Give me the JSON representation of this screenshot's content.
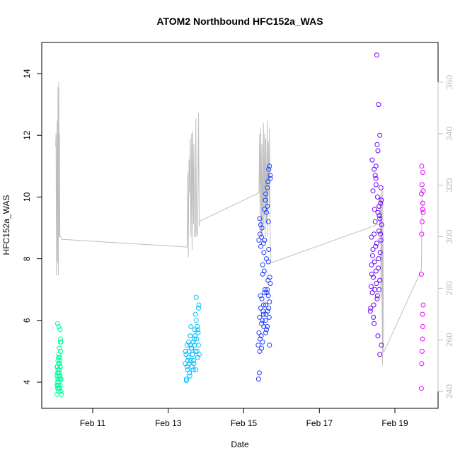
{
  "chart_data": {
    "type": "scatter",
    "title": "ATOM2 Northbound HFC152a_WAS",
    "xlabel": "Date",
    "ylabel": "HFC152a_WAS",
    "x_unit": "days (Feb 2017)",
    "xlim": [
      10.0,
      20.0
    ],
    "ylim": [
      3.5,
      15.0
    ],
    "y2lim": [
      240.0,
      365.0
    ],
    "x_ticks": [
      11,
      13,
      15,
      17,
      19
    ],
    "x_tick_labels": [
      "Feb 11",
      "Feb 13",
      "Feb 15",
      "Feb 17",
      "Feb 19"
    ],
    "y_ticks": [
      4,
      6,
      8,
      10,
      12,
      14
    ],
    "y_tick_labels": [
      "4",
      "6",
      "8",
      "10",
      "12",
      "14"
    ],
    "y2_ticks": [
      240,
      260,
      280,
      300,
      320,
      340,
      360
    ],
    "y2_tick_labels": [
      "240",
      "260",
      "280",
      "300",
      "320",
      "340",
      "360"
    ],
    "grid": false,
    "colors": {
      "points_flight1": "#00FF99",
      "points_flight2": "#00BFFF",
      "points_flight3": "#1E3CFF",
      "points_flight4": "#6A00FF",
      "points_flight5": "#E600FF",
      "secondary_line": "#bebebe"
    },
    "series": [
      {
        "color": "#00FF99",
        "x": [
          10.05,
          10.06,
          10.06,
          10.07,
          10.07,
          10.08,
          10.08,
          10.09,
          10.09,
          10.1,
          10.1,
          10.11,
          10.11,
          10.12,
          10.12,
          10.13,
          10.13,
          10.14,
          10.14,
          10.15,
          10.16,
          10.16,
          10.17,
          10.06,
          10.08,
          10.1,
          10.12,
          10.14,
          10.07,
          10.09,
          10.11,
          10.13,
          10.15,
          10.05,
          10.08,
          10.1,
          10.12,
          10.15,
          10.06,
          10.09,
          10.11,
          10.13,
          10.07,
          10.1,
          10.14,
          10.16
        ],
        "y": [
          3.6,
          3.9,
          4.2,
          3.8,
          4.5,
          4.1,
          4.7,
          3.9,
          4.3,
          4.9,
          4.0,
          4.6,
          4.4,
          5.1,
          3.8,
          4.2,
          4.8,
          4.5,
          5.3,
          5.4,
          4.1,
          3.7,
          3.6,
          4.0,
          4.4,
          3.7,
          4.6,
          3.9,
          4.3,
          4.8,
          4.1,
          4.5,
          5.0,
          4.2,
          3.9,
          4.6,
          4.3,
          4.1,
          4.5,
          3.8,
          4.2,
          4.7,
          5.9,
          5.8,
          5.7,
          5.3
        ]
      },
      {
        "color": "#00BFFF",
        "x": [
          13.45,
          13.47,
          13.48,
          13.5,
          13.51,
          13.53,
          13.55,
          13.56,
          13.58,
          13.6,
          13.61,
          13.63,
          13.65,
          13.66,
          13.68,
          13.7,
          13.72,
          13.73,
          13.75,
          13.77,
          13.78,
          13.8,
          13.82,
          13.46,
          13.5,
          13.54,
          13.57,
          13.62,
          13.67,
          13.71,
          13.74,
          13.79,
          13.48,
          13.52,
          13.58,
          13.64,
          13.69,
          13.76,
          13.81,
          13.55,
          13.6,
          13.66,
          13.72,
          13.78,
          13.74,
          13.8,
          13.7
        ],
        "y": [
          4.6,
          4.9,
          4.1,
          5.2,
          4.4,
          4.8,
          5.0,
          4.3,
          5.5,
          4.7,
          5.1,
          4.5,
          4.9,
          5.3,
          4.6,
          5.7,
          5.0,
          4.4,
          5.4,
          5.8,
          4.8,
          5.2,
          4.9,
          5.0,
          4.5,
          5.3,
          4.2,
          5.1,
          4.7,
          5.5,
          6.0,
          5.6,
          4.05,
          4.7,
          5.2,
          4.9,
          5.4,
          5.0,
          6.5,
          4.6,
          5.8,
          4.4,
          6.2,
          5.7,
          6.75,
          6.4,
          5.2
        ]
      },
      {
        "color": "#1E3CFF",
        "x": [
          15.38,
          15.4,
          15.42,
          15.43,
          15.45,
          15.47,
          15.48,
          15.5,
          15.52,
          15.53,
          15.55,
          15.57,
          15.58,
          15.6,
          15.62,
          15.63,
          15.65,
          15.67,
          15.68,
          15.7,
          15.39,
          15.42,
          15.46,
          15.49,
          15.52,
          15.56,
          15.59,
          15.62,
          15.66,
          15.69,
          15.41,
          15.44,
          15.47,
          15.51,
          15.54,
          15.58,
          15.61,
          15.64,
          15.68,
          15.4,
          15.45,
          15.5,
          15.55,
          15.6,
          15.65,
          15.7,
          15.43,
          15.48,
          15.53,
          15.57,
          15.62,
          15.66,
          15.45,
          15.5,
          15.55,
          15.6,
          15.65,
          15.68,
          15.52,
          15.58,
          15.62,
          15.66,
          15.7,
          15.42,
          15.47,
          15.57,
          15.64
        ],
        "y": [
          5.2,
          5.6,
          6.1,
          5.4,
          6.4,
          5.9,
          6.7,
          5.3,
          6.2,
          5.8,
          6.9,
          6.0,
          6.5,
          5.7,
          7.0,
          6.3,
          6.8,
          6.1,
          6.6,
          7.2,
          4.1,
          5.0,
          5.5,
          6.0,
          6.5,
          7.0,
          6.2,
          5.8,
          6.4,
          7.4,
          4.3,
          6.8,
          5.1,
          6.3,
          7.6,
          5.6,
          6.9,
          7.3,
          5.2,
          8.6,
          8.4,
          7.8,
          9.6,
          8.0,
          9.2,
          10.6,
          8.8,
          9.0,
          8.2,
          9.9,
          10.3,
          10.9,
          9.1,
          7.5,
          8.6,
          9.5,
          7.9,
          11.0,
          8.5,
          10.1,
          9.7,
          8.3,
          10.7,
          9.3,
          8.7,
          9.9,
          10.5
        ]
      },
      {
        "color": "#6A00FF",
        "x": [
          18.35,
          18.37,
          18.38,
          18.4,
          18.42,
          18.43,
          18.45,
          18.47,
          18.48,
          18.5,
          18.52,
          18.53,
          18.55,
          18.57,
          18.58,
          18.6,
          18.62,
          18.63,
          18.65,
          18.36,
          18.39,
          18.41,
          18.44,
          18.46,
          18.49,
          18.51,
          18.54,
          18.56,
          18.59,
          18.61,
          18.64,
          18.38,
          18.42,
          18.46,
          18.5,
          18.54,
          18.58,
          18.62,
          18.4,
          18.45,
          18.5,
          18.55,
          18.6,
          18.43,
          18.48,
          18.53,
          18.58,
          18.63,
          18.45,
          18.5,
          18.55,
          18.6,
          18.64,
          18.52,
          18.57,
          18.6
        ],
        "y": [
          6.3,
          7.1,
          7.8,
          6.9,
          8.3,
          7.4,
          8.8,
          7.0,
          9.2,
          7.6,
          8.5,
          6.7,
          9.5,
          8.0,
          8.9,
          7.3,
          9.8,
          8.6,
          9.1,
          6.4,
          7.5,
          8.1,
          6.5,
          9.6,
          8.4,
          7.2,
          10.0,
          7.7,
          9.4,
          8.2,
          9.9,
          8.7,
          10.2,
          7.9,
          10.6,
          6.8,
          9.7,
          8.8,
          11.2,
          10.9,
          10.4,
          11.5,
          9.3,
          6.1,
          10.7,
          11.7,
          7.0,
          10.3,
          5.9,
          11.0,
          5.5,
          12.0,
          5.2,
          14.6,
          13.0,
          4.9
        ]
      },
      {
        "color": "#E600FF",
        "x": [
          19.7,
          19.71,
          19.72,
          19.73,
          19.74,
          19.75,
          19.7,
          19.71,
          19.72,
          19.73,
          19.74,
          19.75,
          19.7,
          19.72,
          19.74,
          19.71,
          19.73,
          19.75
        ],
        "y": [
          3.8,
          4.6,
          5.0,
          5.4,
          5.8,
          6.5,
          7.5,
          8.8,
          9.2,
          9.6,
          9.8,
          10.2,
          10.1,
          10.4,
          10.8,
          11.0,
          6.2,
          9.5
        ]
      },
      {
        "color": "#bebebe",
        "axis": "right",
        "x": [
          10.02,
          10.03,
          10.04,
          10.05,
          10.06,
          10.07,
          10.08,
          10.09,
          10.1,
          10.11,
          10.12,
          10.13,
          10.14,
          10.15,
          10.16,
          10.17,
          13.5,
          13.52,
          13.53,
          13.55,
          13.56,
          13.58,
          13.6,
          13.62,
          13.63,
          13.65,
          13.67,
          13.68,
          13.7,
          13.72,
          13.73,
          13.75,
          13.77,
          13.78,
          13.8,
          13.82,
          13.83,
          15.4,
          15.42,
          15.43,
          15.45,
          15.47,
          15.48,
          15.5,
          15.52,
          15.53,
          15.55,
          15.57,
          15.58,
          15.6,
          15.62,
          15.63,
          15.65,
          15.67,
          15.68,
          15.7,
          15.72,
          15.75,
          18.6,
          18.62,
          18.63,
          18.65,
          18.67,
          18.68,
          18.7,
          19.7,
          19.72,
          19.75
        ],
        "y": [
          335,
          340,
          285,
          325,
          345,
          290,
          358,
          285,
          360,
          300,
          340,
          300,
          300,
          300,
          300,
          299,
          296,
          325,
          292,
          330,
          317,
          338,
          300,
          340,
          295,
          341,
          305,
          336,
          300,
          300,
          346,
          302,
          300,
          304,
          348,
          304,
          306,
          317,
          340,
          301,
          342,
          300,
          336,
          302,
          344,
          305,
          340,
          300,
          338,
          306,
          345,
          300,
          337,
          312,
          342,
          298,
          290,
          290,
          305,
          316,
          276,
          318,
          250,
          318,
          255,
          287,
          315,
          318
        ]
      }
    ]
  }
}
